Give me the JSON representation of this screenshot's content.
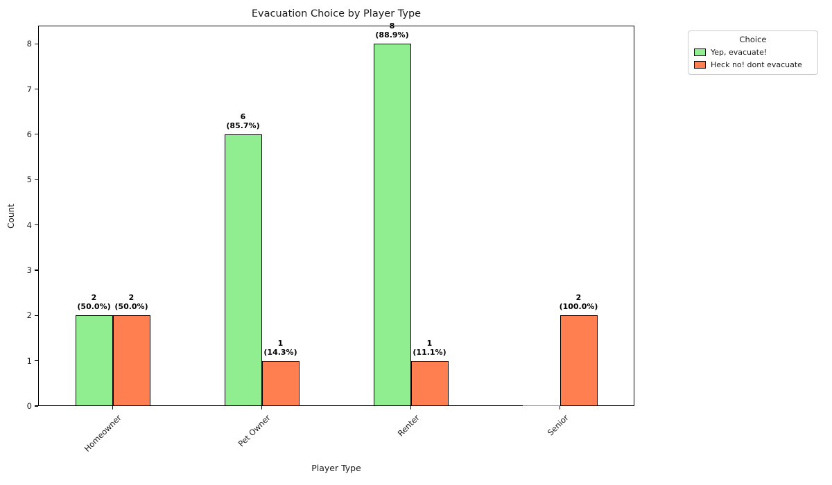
{
  "chart_data": {
    "type": "bar",
    "title": "Evacuation Choice by Player Type",
    "xlabel": "Player Type",
    "ylabel": "Count",
    "categories": [
      "Homeowner",
      "Pet Owner",
      "Renter",
      "Senior"
    ],
    "series": [
      {
        "name": "Yep, evacuate!",
        "color": "#90EE90",
        "values": [
          2,
          6,
          8,
          0
        ],
        "count_labels": [
          "2",
          "6",
          "8",
          ""
        ],
        "pct_labels": [
          "(50.0%)",
          "(85.7%)",
          "(88.9%)",
          ""
        ]
      },
      {
        "name": "Heck no! dont evacuate",
        "color": "#FF7F50",
        "values": [
          2,
          1,
          1,
          2
        ],
        "count_labels": [
          "2",
          "1",
          "1",
          "2"
        ],
        "pct_labels": [
          "(50.0%)",
          "(14.3%)",
          "(11.1%)",
          "(100.0%)"
        ]
      }
    ],
    "ylim": [
      0,
      8.4
    ],
    "yticks": [
      0,
      1,
      2,
      3,
      4,
      5,
      6,
      7,
      8
    ],
    "grid": false,
    "bar_edge_color": "#000000",
    "legend": {
      "title": "Choice",
      "position": "outside-upper-right"
    }
  }
}
